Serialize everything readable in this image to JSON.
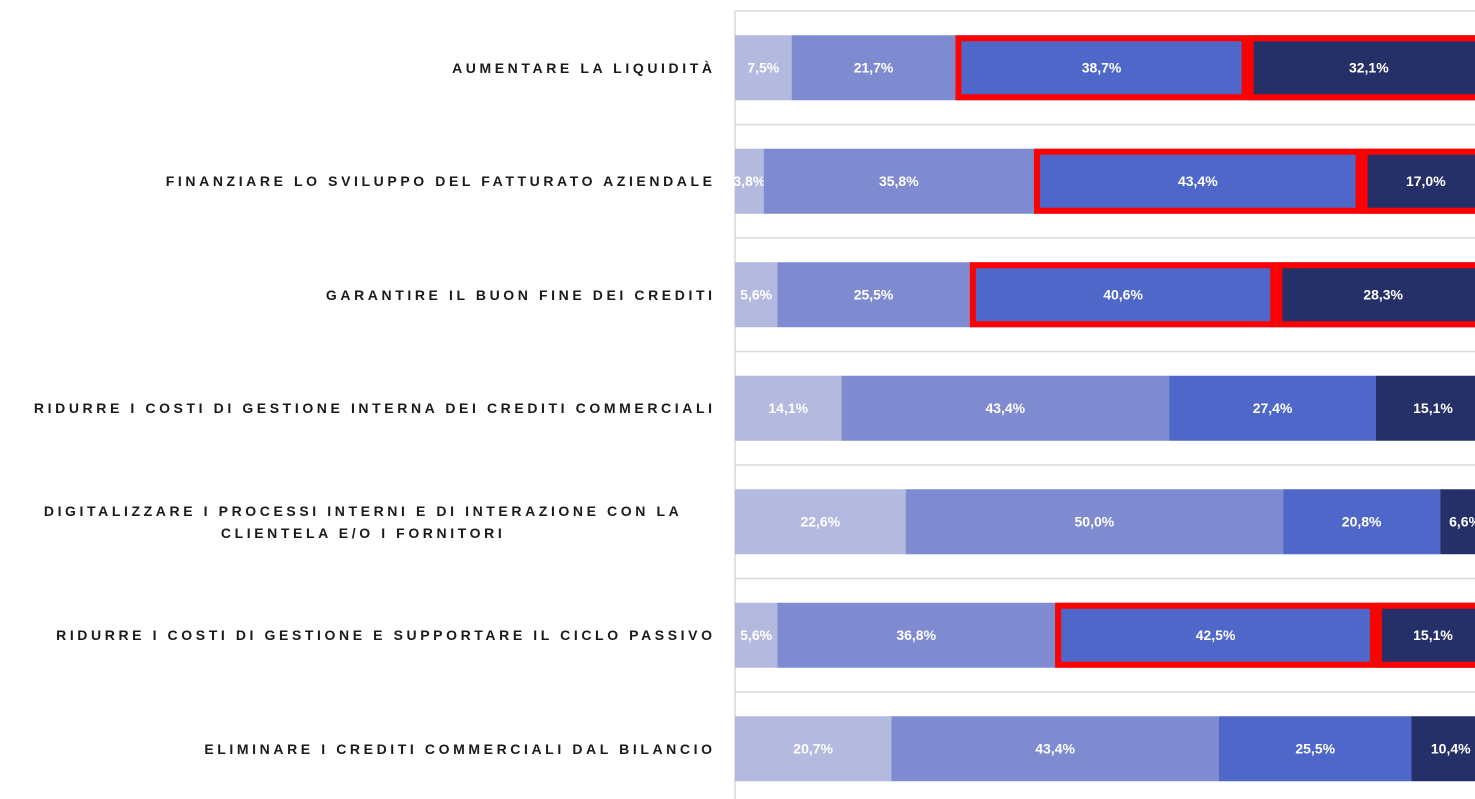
{
  "chart_data": {
    "type": "stacked-barh",
    "categories": [
      "AUMENTARE LA LIQUIDITÀ",
      "FINANZIARE LO SVILUPPO DEL FATTURATO AZIENDALE",
      "GARANTIRE IL BUON FINE DEI CREDITI",
      "RIDURRE I COSTI DI GESTIONE INTERNA DEI CREDITI COMMERCIALI",
      "DIGITALIZZARE I PROCESSI INTERNI E DI INTERAZIONE CON LA CLIENTELA E/O I FORNITORI",
      "RIDURRE I COSTI DI GESTIONE E SUPPORTARE IL CICLO PASSIVO",
      "ELIMINARE I CREDITI COMMERCIALI DAL BILANCIO"
    ],
    "series": [
      {
        "color": "#b4b9e0",
        "values": [
          7.5,
          3.8,
          5.6,
          14.1,
          22.6,
          5.6,
          20.7
        ],
        "value_labels": [
          "7,5%",
          "3,8%",
          "5,6%",
          "14,1%",
          "22,6%",
          "5,6%",
          "20,7%"
        ]
      },
      {
        "color": "#7f8bd1",
        "values": [
          21.7,
          35.8,
          25.5,
          43.4,
          50.0,
          36.8,
          43.4
        ],
        "value_labels": [
          "21,7%",
          "35,8%",
          "25,5%",
          "43,4%",
          "50,0%",
          "36,8%",
          "43,4%"
        ]
      },
      {
        "color": "#4f67c8",
        "values": [
          38.7,
          43.4,
          40.6,
          27.4,
          20.8,
          42.5,
          25.5
        ],
        "value_labels": [
          "38,7%",
          "43,4%",
          "40,6%",
          "27,4%",
          "20,8%",
          "42,5%",
          "25,5%"
        ]
      },
      {
        "color": "#253068",
        "values": [
          32.1,
          17.0,
          28.3,
          15.1,
          6.6,
          15.1,
          10.4
        ],
        "value_labels": [
          "32,1%",
          "17,0%",
          "28,3%",
          "15,1%",
          "6,6%",
          "15,1%",
          "10,4%"
        ]
      }
    ],
    "xlim": [
      0,
      100
    ],
    "highlight": [
      true,
      true,
      true,
      false,
      false,
      true,
      false
    ],
    "highlight_series": [
      2,
      3
    ],
    "highlight_color": "#ff0000"
  }
}
